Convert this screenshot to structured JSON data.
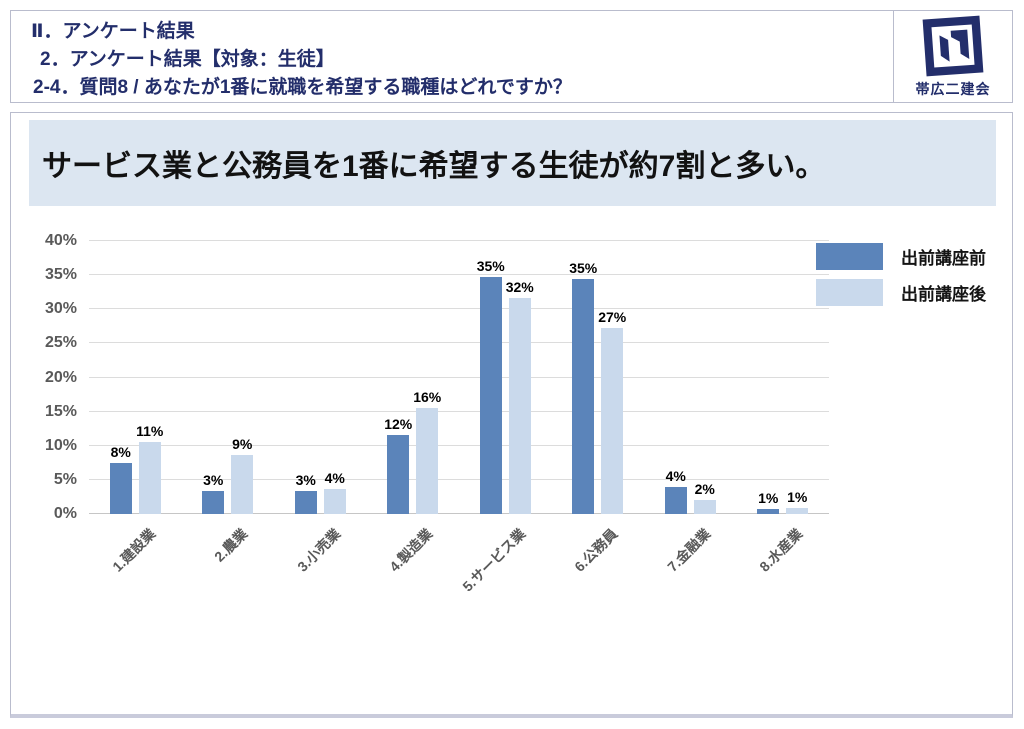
{
  "header": {
    "line1": "Ⅱ．アンケート結果",
    "line2": "2．アンケート結果【対象：生徒】",
    "line3": "2-4．質問8 / あなたが1番に就職を希望する職種はどれですか？",
    "logo_text": "帯広二建会"
  },
  "headline": "サービス業と公務員を1番に希望する生徒が約7割と多い。",
  "colors": {
    "header_navy": "#232e6b",
    "series_before": "#5b84ba",
    "series_after": "#c9d9ec",
    "title_band_bg": "#dce6f1",
    "gridline": "#dcdcdc",
    "axis_text": "#595959",
    "box_border": "#b9bccd"
  },
  "chart_data": {
    "type": "bar",
    "title": "",
    "xlabel": "",
    "ylabel": "",
    "ylim": [
      0,
      40
    ],
    "grid": true,
    "legend_position": "top-right",
    "y_ticks": [
      "0%",
      "5%",
      "10%",
      "15%",
      "20%",
      "25%",
      "30%",
      "35%",
      "40%"
    ],
    "categories": [
      "1.建設業",
      "2.農業",
      "3.小売業",
      "4.製造業",
      "5.サービス業",
      "6.公務員",
      "7.金融業",
      "8.水産業"
    ],
    "series": [
      {
        "name": "出前講座前",
        "color": "#5b84ba",
        "values": [
          7.5,
          3.3,
          3.4,
          11.6,
          34.8,
          34.5,
          3.9,
          0.8
        ],
        "labels": [
          "8%",
          "3%",
          "3%",
          "12%",
          "35%",
          "35%",
          "4%",
          "1%"
        ]
      },
      {
        "name": "出前講座後",
        "color": "#c9d9ec",
        "values": [
          10.5,
          8.6,
          3.7,
          15.5,
          31.7,
          27.2,
          2.0,
          0.9
        ],
        "labels": [
          "11%",
          "9%",
          "4%",
          "16%",
          "32%",
          "27%",
          "2%",
          "1%"
        ]
      }
    ]
  }
}
